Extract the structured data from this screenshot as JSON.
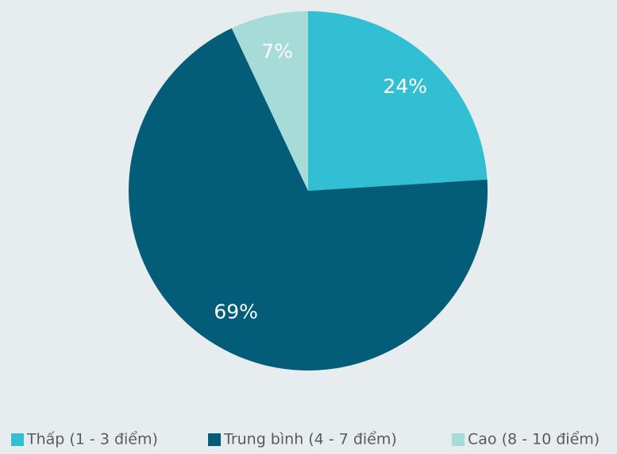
{
  "chart_data": {
    "type": "pie",
    "categories": [
      "Thấp (1 - 3 điểm)",
      "Trung bình (4 - 7 điểm)",
      "Cao (8 - 10 điểm)"
    ],
    "values": [
      24,
      69,
      7
    ],
    "value_labels": [
      "24%",
      "69%",
      "7%"
    ],
    "colors": [
      "#33bfd3",
      "#045d78",
      "#a7dbd8"
    ],
    "legend": "bottom"
  }
}
